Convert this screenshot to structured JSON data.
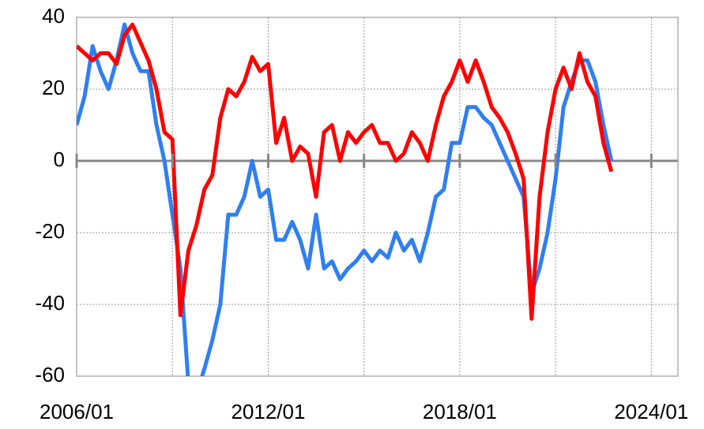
{
  "chart_data": {
    "type": "line",
    "x": [
      "2006/01",
      "2006/04",
      "2006/07",
      "2006/10",
      "2007/01",
      "2007/04",
      "2007/07",
      "2007/10",
      "2008/01",
      "2008/04",
      "2008/07",
      "2008/10",
      "2009/01",
      "2009/04",
      "2009/07",
      "2009/10",
      "2010/01",
      "2010/04",
      "2010/07",
      "2010/10",
      "2011/01",
      "2011/04",
      "2011/07",
      "2011/10",
      "2012/01",
      "2012/04",
      "2012/07",
      "2012/10",
      "2013/01",
      "2013/04",
      "2013/07",
      "2013/10",
      "2014/01",
      "2014/04",
      "2014/07",
      "2014/10",
      "2015/01",
      "2015/04",
      "2015/07",
      "2015/10",
      "2016/01",
      "2016/04",
      "2016/07",
      "2016/10",
      "2017/01",
      "2017/04",
      "2017/07",
      "2017/10",
      "2018/01",
      "2018/04",
      "2018/07",
      "2018/10",
      "2019/01",
      "2019/04",
      "2019/07",
      "2019/10",
      "2020/01",
      "2020/04",
      "2020/07",
      "2020/10",
      "2021/01",
      "2021/04",
      "2021/07",
      "2021/10",
      "2022/01",
      "2022/04",
      "2022/07",
      "2022/10"
    ],
    "series": [
      {
        "color": "#2f7ff0",
        "values": [
          10,
          18,
          32,
          25,
          20,
          28,
          38,
          30,
          25,
          25,
          10,
          0,
          -15,
          -30,
          -62,
          -65,
          -58,
          -50,
          -40,
          -15,
          -15,
          -10,
          0,
          -10,
          -8,
          -22,
          -22,
          -17,
          -22,
          -30,
          -15,
          -30,
          -28,
          -33,
          -30,
          -28,
          -25,
          -28,
          -25,
          -27,
          -20,
          -25,
          -22,
          -28,
          -20,
          -10,
          -8,
          5,
          5,
          15,
          15,
          12,
          10,
          5,
          0,
          -5,
          -10,
          -37,
          -30,
          -20,
          -5,
          15,
          22,
          28,
          28,
          22,
          10,
          0
        ]
      },
      {
        "color": "#ff0000",
        "values": [
          32,
          30,
          28,
          30,
          30,
          27,
          35,
          38,
          33,
          28,
          20,
          8,
          6,
          -43,
          -25,
          -18,
          -8,
          -4,
          12,
          20,
          18,
          22,
          29,
          25,
          27,
          5,
          12,
          0,
          4,
          2,
          -10,
          8,
          10,
          0,
          8,
          5,
          8,
          10,
          5,
          5,
          0,
          2,
          8,
          5,
          0,
          10,
          18,
          22,
          28,
          22,
          28,
          22,
          15,
          12,
          8,
          2,
          -5,
          -44,
          -10,
          8,
          20,
          26,
          20,
          30,
          22,
          18,
          5,
          -3
        ]
      }
    ],
    "xlim": [
      "2006/01",
      "2024/11"
    ],
    "xticks": [
      "2006/01",
      {
        "value": "2009/01",
        "label": null
      },
      "2012/01",
      {
        "value": "2015/01",
        "label": null
      },
      "2018/01",
      {
        "value": "2021/01",
        "label": null
      },
      "2024/01"
    ],
    "ylim": [
      -60,
      40
    ],
    "yticks": [
      -60,
      -40,
      -20,
      0,
      20,
      40
    ],
    "grid": true
  }
}
